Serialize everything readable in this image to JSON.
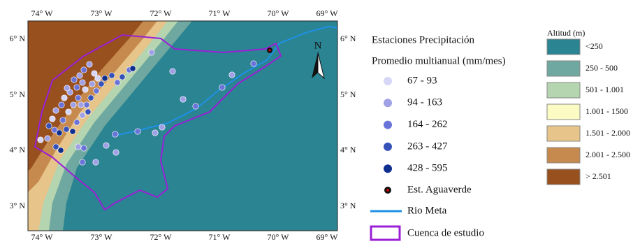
{
  "map": {
    "lon_labels": [
      "74° W",
      "73° W",
      "72° W",
      "71° W",
      "70° W",
      "69° W"
    ],
    "lat_labels": [
      "6° N",
      "5° N",
      "4° N",
      "3° N"
    ],
    "north": "N"
  },
  "legend_precip": {
    "title": "Estaciones Precipitación",
    "subtitle": "Promedio multianual (mm/mes)",
    "items": [
      "67 - 93",
      "94 - 163",
      "164 - 262",
      "263 - 427",
      "428 - 595"
    ]
  },
  "legend_other": [
    "Est. Aguaverde",
    "Rio Meta",
    "Cuenca de estudio"
  ],
  "legend_altitude": {
    "title": "Altitud (m)",
    "items": [
      "<250",
      "250 - 500",
      "501 - 1.001",
      "1.001 - 1500",
      "1.501 - 2.000",
      "2.001 - 2.500",
      "> 2.501"
    ]
  }
}
